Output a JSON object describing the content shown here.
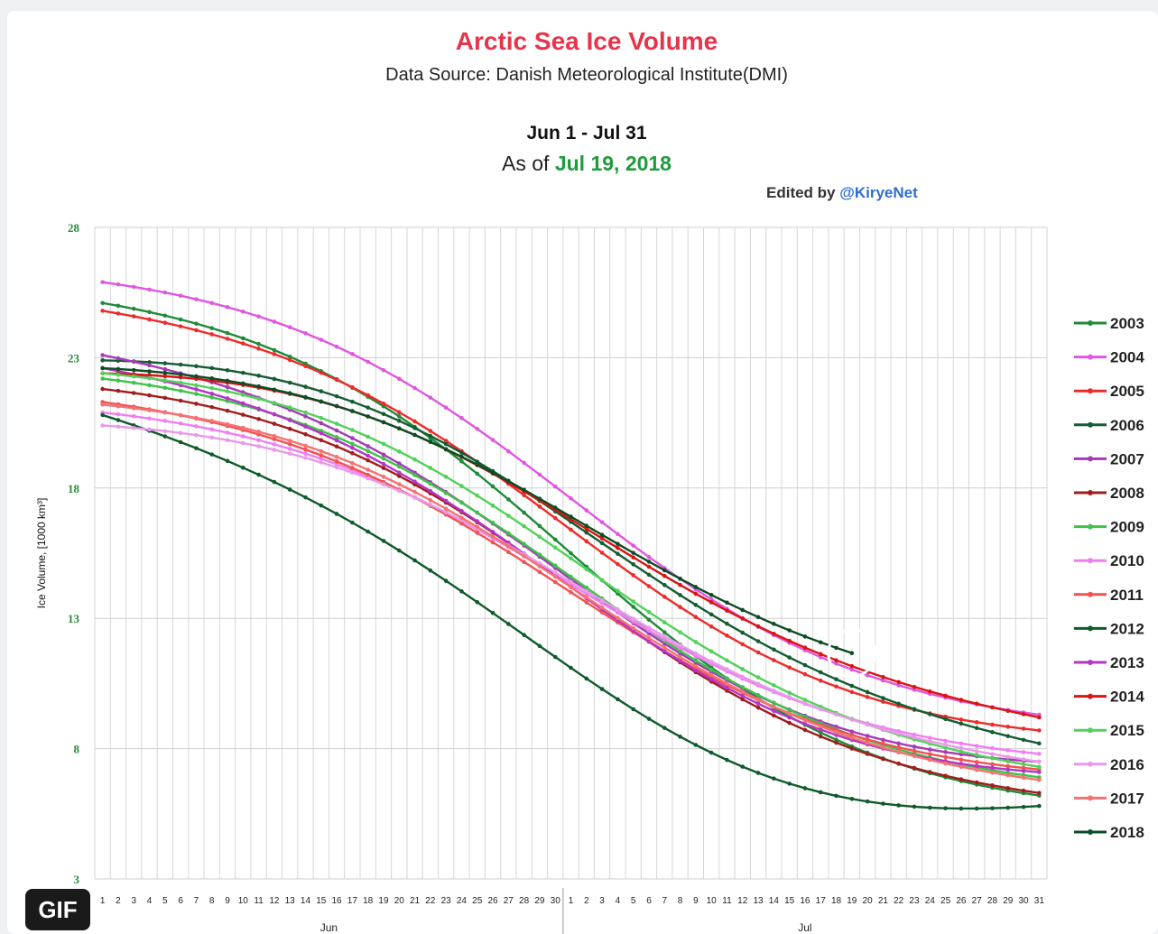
{
  "badge": {
    "label": "GIF"
  },
  "chart_data": {
    "type": "line",
    "title": "Arctic Sea Ice Volume",
    "subtitle": "Data Source: Danish Meteorological Institute(DMI)",
    "date_range": "Jun 1 - Jul 31",
    "as_of_prefix": "As of",
    "as_of_date": "Jul 19, 2018",
    "edited_by_prefix": "Edited by",
    "edited_by_handle": "@KiryeNet",
    "ylabel": "Ice Volume, [1000 km³]",
    "ylim": [
      3,
      28
    ],
    "yticks": [
      3,
      8,
      13,
      18,
      23,
      28
    ],
    "months": [
      "Jun",
      "Jul"
    ],
    "days_in_month": [
      30,
      31
    ],
    "grid": true,
    "legend_position": "right",
    "highlight": {
      "label": "Jul 19"
    },
    "series": [
      {
        "name": "2003",
        "color": "#1f8a3a",
        "start": 25.1,
        "mid": 15.5,
        "end": 6.2
      },
      {
        "name": "2004",
        "color": "#e056e0",
        "start": 25.9,
        "mid": 17.6,
        "end": 9.3
      },
      {
        "name": "2005",
        "color": "#ee2b2b",
        "start": 24.8,
        "mid": 16.4,
        "end": 8.7
      },
      {
        "name": "2006",
        "color": "#145c32",
        "start": 22.9,
        "mid": 16.7,
        "end": 8.2
      },
      {
        "name": "2007",
        "color": "#a33bb5",
        "start": 23.1,
        "mid": 14.5,
        "end": 7.5
      },
      {
        "name": "2008",
        "color": "#a11d1d",
        "start": 21.8,
        "mid": 14.2,
        "end": 6.3
      },
      {
        "name": "2009",
        "color": "#3ec24a",
        "start": 22.2,
        "mid": 14.6,
        "end": 6.9
      },
      {
        "name": "2010",
        "color": "#f07ef0",
        "start": 20.9,
        "mid": 14.3,
        "end": 7.8
      },
      {
        "name": "2011",
        "color": "#f25252",
        "start": 21.3,
        "mid": 14.0,
        "end": 7.2
      },
      {
        "name": "2012",
        "color": "#0f5a2a",
        "start": 20.8,
        "mid": 11.1,
        "end": 5.8
      },
      {
        "name": "2013",
        "color": "#b535c9",
        "start": 22.6,
        "mid": 14.2,
        "end": 7.1
      },
      {
        "name": "2014",
        "color": "#d91414",
        "start": 22.4,
        "mid": 16.8,
        "end": 9.2
      },
      {
        "name": "2015",
        "color": "#52d15a",
        "start": 22.4,
        "mid": 15.3,
        "end": 7.3
      },
      {
        "name": "2016",
        "color": "#e89ae8",
        "start": 20.4,
        "mid": 14.4,
        "end": 7.5
      },
      {
        "name": "2017",
        "color": "#f57272",
        "start": 21.2,
        "mid": 14.2,
        "end": 6.8
      },
      {
        "name": "2018",
        "color": "#0c4d24",
        "start": 22.6,
        "mid": 16.9,
        "end": 10.0,
        "last_day_index": 48
      }
    ]
  }
}
